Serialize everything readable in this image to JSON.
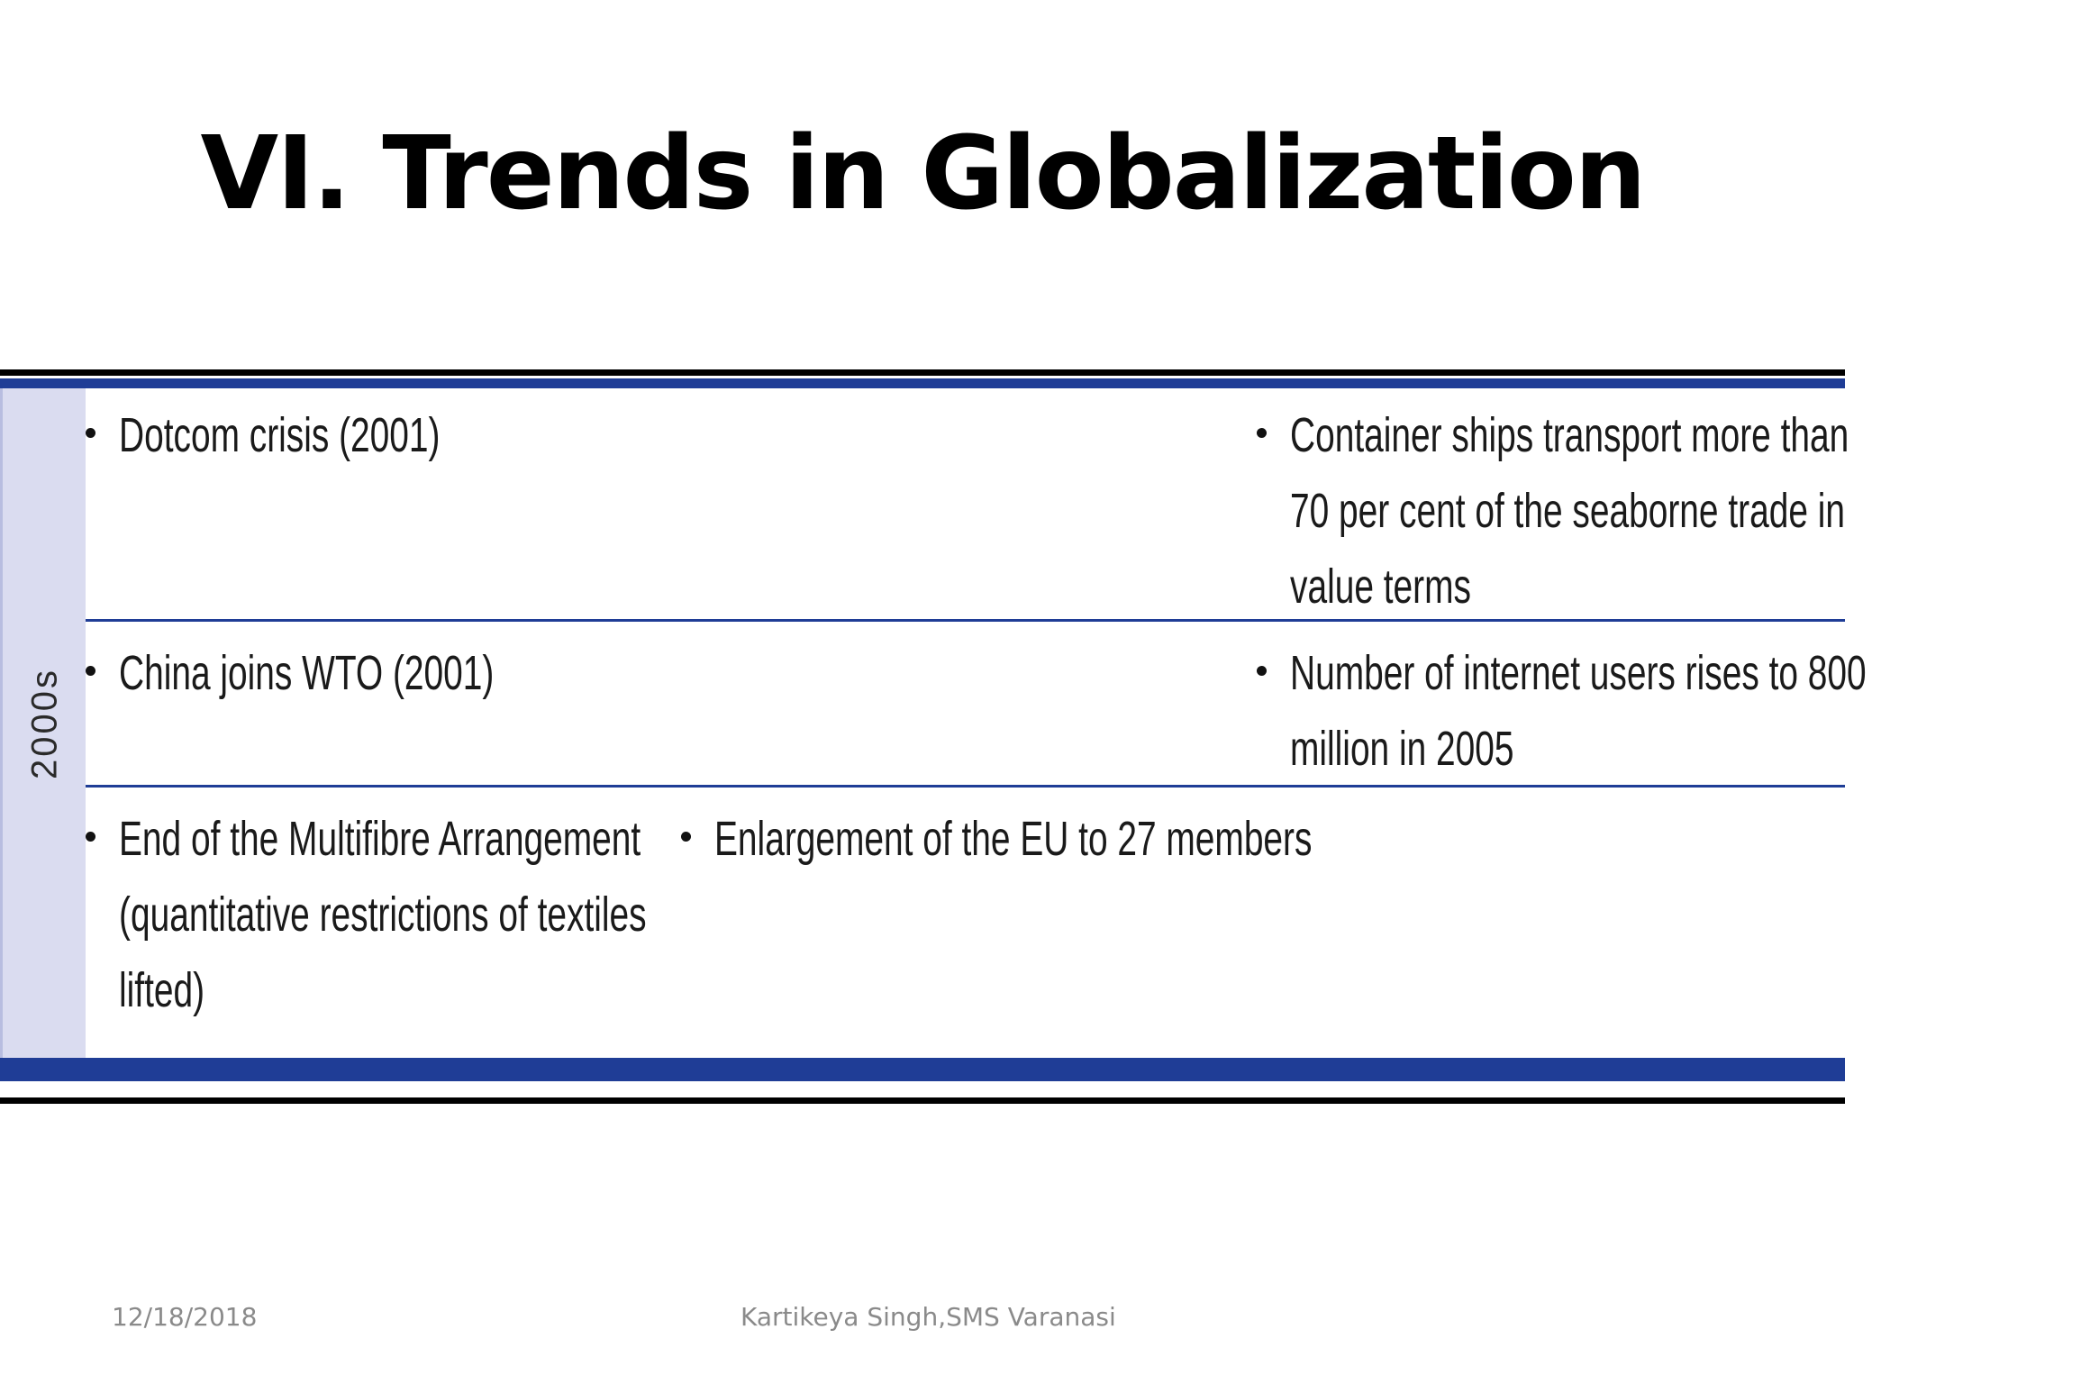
{
  "slide": {
    "title": "VI. Trends in Globalization",
    "footer_date": "12/18/2018",
    "footer_author": "Kartikeya Singh,SMS Varanasi"
  },
  "table": {
    "decade": "2000s",
    "colors": {
      "band": "#1f3d96",
      "sidebar": "#dadcf0"
    },
    "rows": [
      {
        "left": [
          "Dotcom crisis (2001)"
        ],
        "middle": [],
        "right": [
          "Container ships transport more than",
          "70 per cent of the seaborne trade in",
          "value terms"
        ]
      },
      {
        "left": [
          "China joins WTO (2001)"
        ],
        "middle": [],
        "right": [
          "Number of internet users rises to 800",
          "million  in  2005"
        ]
      },
      {
        "left": [
          "End of the Multifibre Arrangement",
          "(quantitative restrictions of textiles",
          "lifted)"
        ],
        "middle": [
          "Enlargement of the EU to 27 members"
        ],
        "right": []
      }
    ]
  }
}
